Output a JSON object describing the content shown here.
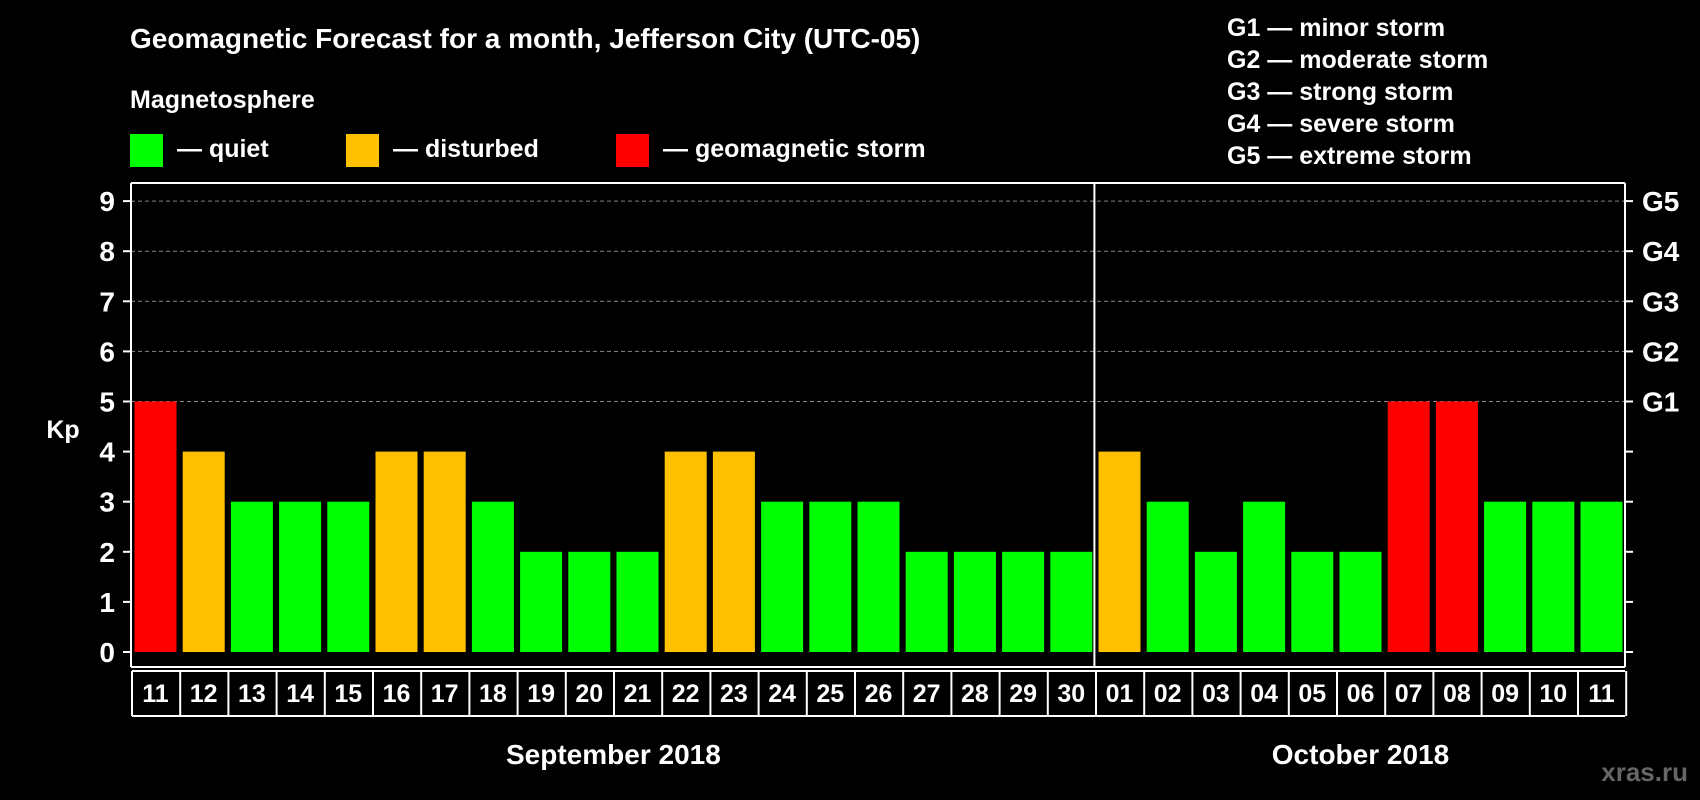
{
  "title": "Geomagnetic Forecast for a month, Jefferson City (UTC-05)",
  "legend": {
    "heading": "Magnetosphere",
    "items": [
      {
        "label": "— quiet",
        "color": "#00ff00"
      },
      {
        "label": "— disturbed",
        "color": "#ffc000"
      },
      {
        "label": "— geomagnetic storm",
        "color": "#ff0000"
      }
    ]
  },
  "storm_scale": [
    "G1 — minor storm",
    "G2 — moderate storm",
    "G3 — strong storm",
    "G4 — severe storm",
    "G5 — extreme storm"
  ],
  "watermark": "xras.ru",
  "colors": {
    "quiet": "#00ff00",
    "disturbed": "#ffc000",
    "storm": "#ff0000",
    "background": "#000000",
    "grid": "#888888"
  },
  "chart_data": {
    "type": "bar",
    "ylabel": "Kp",
    "ylim": [
      0,
      9
    ],
    "yticks": [
      0,
      1,
      2,
      3,
      4,
      5,
      6,
      7,
      8,
      9
    ],
    "right_axis_labels": [
      {
        "kp": 5,
        "label": "G1"
      },
      {
        "kp": 6,
        "label": "G2"
      },
      {
        "kp": 7,
        "label": "G3"
      },
      {
        "kp": 8,
        "label": "G4"
      },
      {
        "kp": 9,
        "label": "G5"
      }
    ],
    "grid": "dashed horizontal lines at Kp 5–9",
    "months": [
      {
        "label": "September 2018",
        "start_index": 0,
        "count": 20
      },
      {
        "label": "October 2018",
        "start_index": 20,
        "count": 11
      }
    ],
    "categories": [
      "11",
      "12",
      "13",
      "14",
      "15",
      "16",
      "17",
      "18",
      "19",
      "20",
      "21",
      "22",
      "23",
      "24",
      "25",
      "26",
      "27",
      "28",
      "29",
      "30",
      "01",
      "02",
      "03",
      "04",
      "05",
      "06",
      "07",
      "08",
      "09",
      "10",
      "11"
    ],
    "values": [
      5,
      4,
      3,
      3,
      3,
      4,
      4,
      3,
      2,
      2,
      2,
      4,
      4,
      3,
      3,
      3,
      2,
      2,
      2,
      2,
      4,
      3,
      2,
      3,
      2,
      2,
      5,
      5,
      3,
      3,
      3
    ],
    "status": [
      "storm",
      "disturbed",
      "quiet",
      "quiet",
      "quiet",
      "disturbed",
      "disturbed",
      "quiet",
      "quiet",
      "quiet",
      "quiet",
      "disturbed",
      "disturbed",
      "quiet",
      "quiet",
      "quiet",
      "quiet",
      "quiet",
      "quiet",
      "quiet",
      "disturbed",
      "quiet",
      "quiet",
      "quiet",
      "quiet",
      "quiet",
      "storm",
      "storm",
      "quiet",
      "quiet",
      "quiet"
    ]
  }
}
